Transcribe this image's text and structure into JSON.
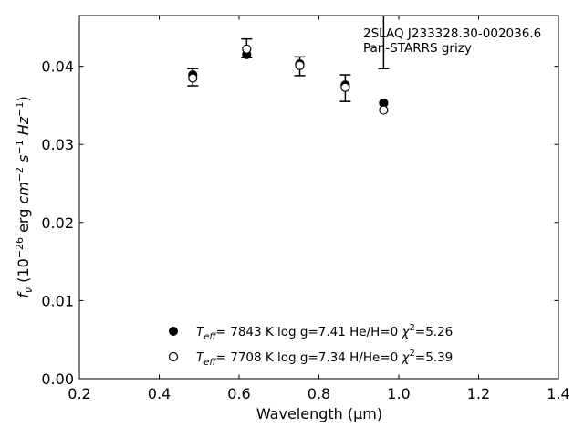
{
  "chart_data": {
    "type": "scatter",
    "title": "",
    "xlabel": "Wavelength (μm)",
    "ylabel": "f_ν (10^-26 erg cm^-2 s^-1 Hz^-1)",
    "xlim": [
      0.2,
      1.4
    ],
    "ylim": [
      0.0,
      0.0465
    ],
    "xticks": [
      0.2,
      0.4,
      0.6,
      0.8,
      1.0,
      1.2,
      1.4
    ],
    "xtick_labels": [
      "0.2",
      "0.4",
      "0.6",
      "0.8",
      "1.0",
      "1.2",
      "1.4"
    ],
    "yticks": [
      0.0,
      0.01,
      0.02,
      0.03,
      0.04
    ],
    "ytick_labels": [
      "0.00",
      "0.01",
      "0.02",
      "0.03",
      "0.04"
    ],
    "grid": false,
    "annotations": [
      "2SLAQ J233328.30-002036.6",
      "Pan-STARRS grizy"
    ],
    "observed": {
      "x": [
        0.484,
        0.619,
        0.752,
        0.866,
        0.962
      ],
      "y": [
        0.0386,
        0.0423,
        0.04,
        0.0372,
        0.0515
      ],
      "yerr": [
        0.0011,
        0.0012,
        0.0012,
        0.0017,
        0.0118
      ]
    },
    "series": [
      {
        "marker": "filled",
        "legend": {
          "teff": "7843 K",
          "logg": "7.41",
          "comp": "He/H=0",
          "chi2": "5.26"
        },
        "x": [
          0.484,
          0.619,
          0.752,
          0.866,
          0.962
        ],
        "y": [
          0.0389,
          0.0415,
          0.0403,
          0.0376,
          0.0353
        ]
      },
      {
        "marker": "open",
        "legend": {
          "teff": "7708 K",
          "logg": "7.34",
          "comp": "H/He=0",
          "chi2": "5.39"
        },
        "x": [
          0.484,
          0.619,
          0.752,
          0.866,
          0.962
        ],
        "y": [
          0.0385,
          0.0422,
          0.0401,
          0.0373,
          0.0344
        ]
      }
    ],
    "legend_position": "bottom-center"
  }
}
